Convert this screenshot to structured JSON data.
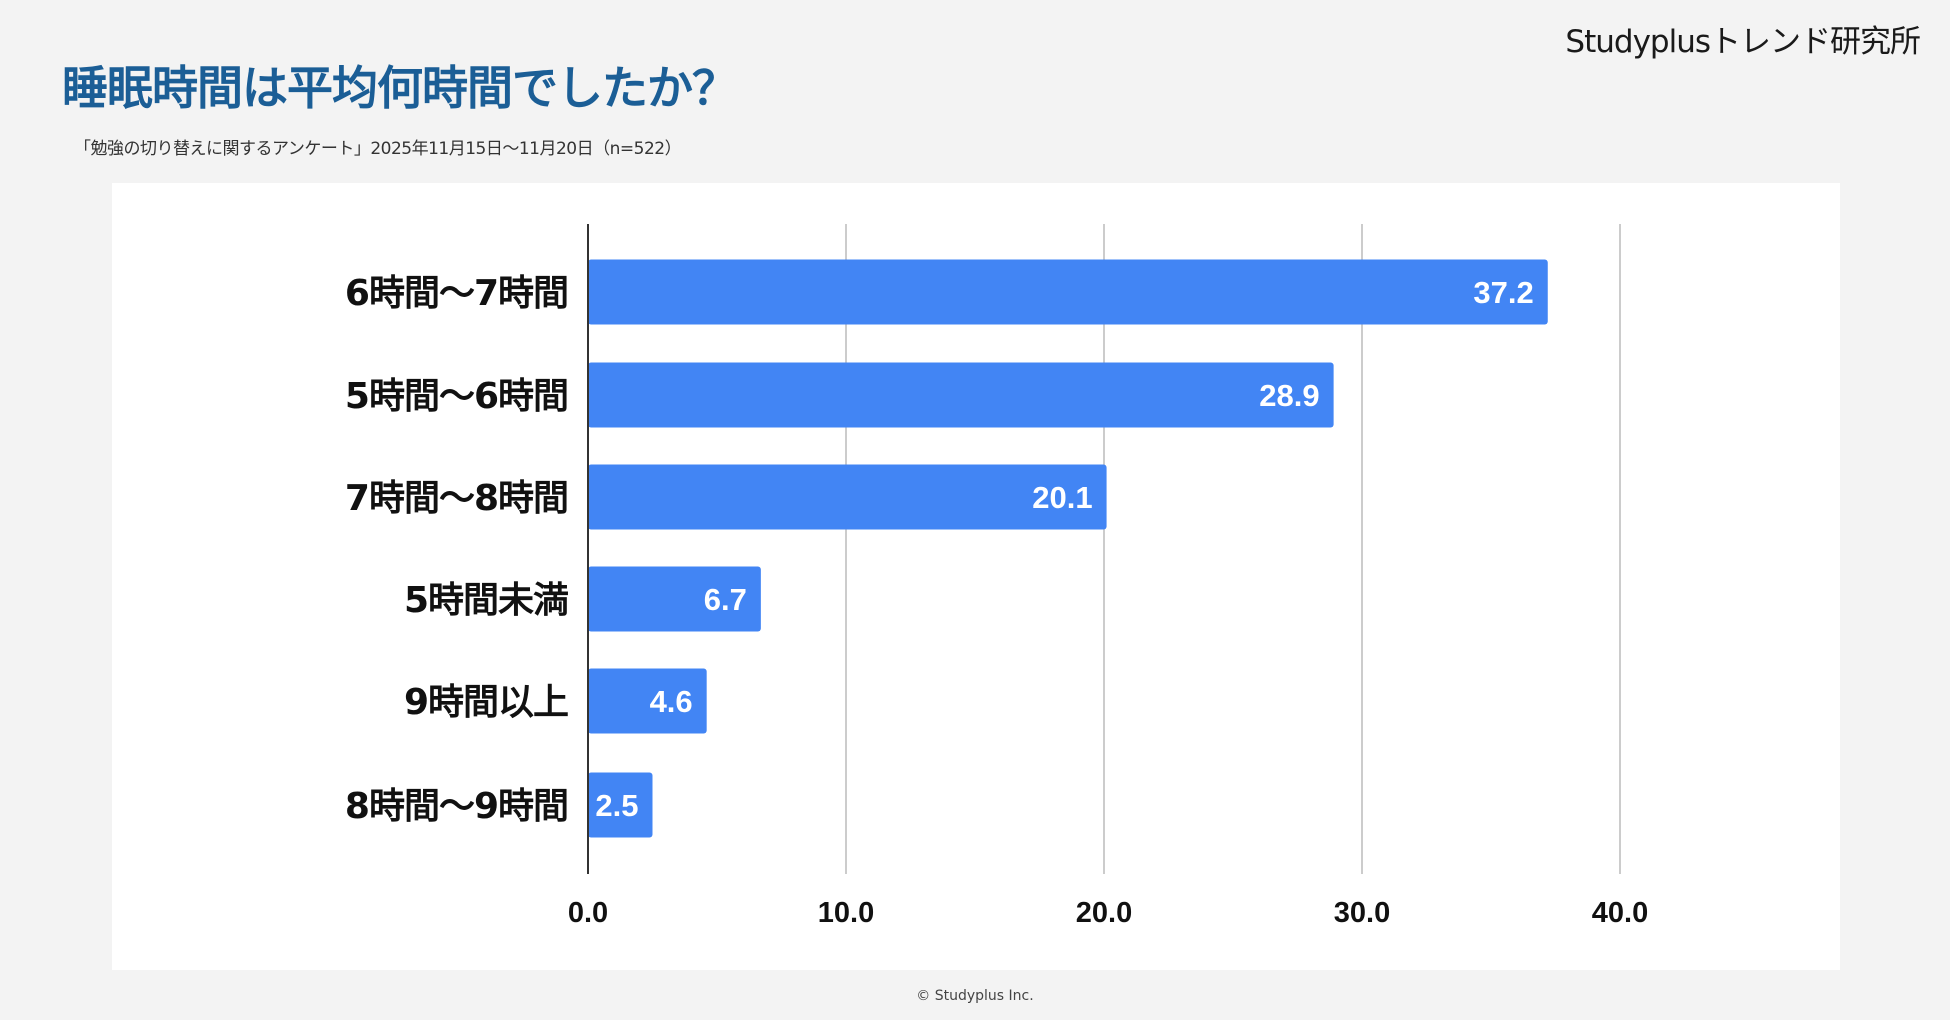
{
  "header": {
    "logo_text": "Studyplusトレンド研究所",
    "title": "睡眠時間は平均何時間でしたか？",
    "subtitle": "「勉強の切り替えに関するアンケート」2025年11月15日〜11月20日（n=522）"
  },
  "footer": {
    "copyright": "© Studyplus Inc."
  },
  "colors": {
    "bar": "#4285f4",
    "title": "#1b5e96"
  },
  "chart_data": {
    "type": "bar",
    "orientation": "horizontal",
    "categories": [
      "6時間〜7時間",
      "5時間〜6時間",
      "7時間〜8時間",
      "5時間未満",
      "9時間以上",
      "8時間〜9時間"
    ],
    "values": [
      37.2,
      28.9,
      20.1,
      6.7,
      4.6,
      2.5
    ],
    "data_labels": [
      "37.2",
      "28.9",
      "20.1",
      "6.7",
      "4.6",
      "2.5"
    ],
    "xlim": [
      0,
      40
    ],
    "xticks": [
      0,
      10,
      20,
      30,
      40
    ],
    "xtick_labels": [
      "0.0",
      "10.0",
      "20.0",
      "30.0",
      "40.0"
    ],
    "grid": true,
    "title": "睡眠時間は平均何時間でしたか？",
    "xlabel": "",
    "ylabel": ""
  }
}
